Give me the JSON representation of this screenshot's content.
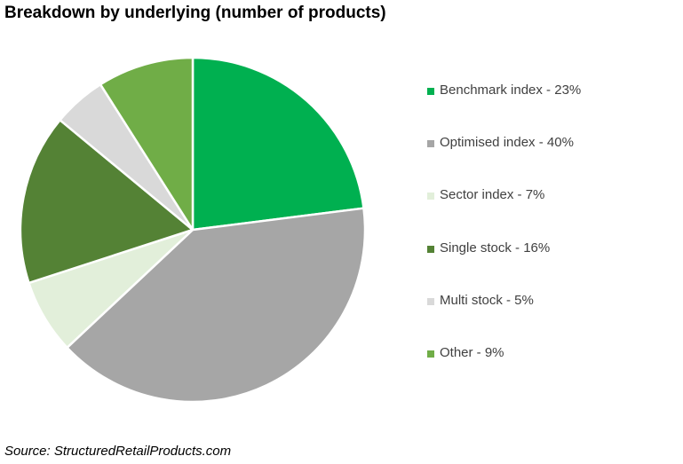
{
  "chart_data": {
    "type": "pie",
    "title": "Breakdown by underlying (number of products)",
    "source": "Source: StructuredRetailProducts.com",
    "legend_position": "right",
    "slices": [
      {
        "label": "Benchmark index - 23%",
        "value": 23,
        "color": "#00b050"
      },
      {
        "label": "Optimised index - 40%",
        "value": 40,
        "color": "#a6a6a6"
      },
      {
        "label": "Sector index - 7%",
        "value": 7,
        "color": "#e2efda"
      },
      {
        "label": "Single stock - 16%",
        "value": 16,
        "color": "#548235"
      },
      {
        "label": "Multi stock - 5%",
        "value": 5,
        "color": "#d9d9d9"
      },
      {
        "label": "Other - 9%",
        "value": 9,
        "color": "#70ad47"
      }
    ]
  }
}
